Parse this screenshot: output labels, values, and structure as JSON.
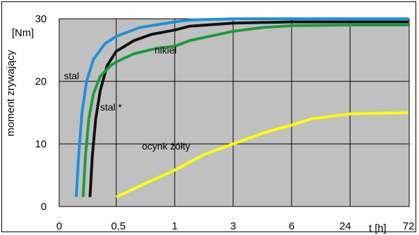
{
  "chart_data": {
    "type": "line",
    "title": "",
    "ylabel": "moment zrywający",
    "yunit": "[Nm]",
    "xlabel": "t [h]",
    "ylim": [
      0,
      30
    ],
    "yticks": [
      "0",
      "10",
      "20",
      "30"
    ],
    "xticks": [
      "0",
      "0,5",
      "1",
      "3",
      "6",
      "24",
      "72"
    ],
    "grid": true,
    "colors": {
      "plot_background": "#c0c0c0",
      "stal": "#1e90dc",
      "stal_star": "#111111",
      "nikiel": "#1f9a3c",
      "ocynk_zolty": "#ffff00"
    },
    "series": [
      {
        "name": "stal",
        "points": [
          [
            0.15,
            1.5
          ],
          [
            0.17,
            8
          ],
          [
            0.2,
            15
          ],
          [
            0.24,
            20
          ],
          [
            0.3,
            23.5
          ],
          [
            0.4,
            26
          ],
          [
            0.5,
            27.2
          ],
          [
            0.7,
            28.6
          ],
          [
            1,
            29.5
          ],
          [
            1.5,
            29.8
          ],
          [
            3,
            30
          ],
          [
            6,
            30
          ],
          [
            24,
            30
          ],
          [
            72,
            30
          ]
        ]
      },
      {
        "name": "stal *",
        "points": [
          [
            0.27,
            1.5
          ],
          [
            0.29,
            8
          ],
          [
            0.32,
            14
          ],
          [
            0.36,
            18.5
          ],
          [
            0.42,
            22.5
          ],
          [
            0.5,
            24.8
          ],
          [
            0.65,
            26.5
          ],
          [
            0.8,
            27.5
          ],
          [
            1,
            28.2
          ],
          [
            1.5,
            28.8
          ],
          [
            3,
            29.3
          ],
          [
            6,
            29.5
          ],
          [
            24,
            29.5
          ],
          [
            72,
            29.5
          ]
        ]
      },
      {
        "name": "nikiel",
        "points": [
          [
            0.21,
            1.5
          ],
          [
            0.23,
            8
          ],
          [
            0.26,
            14
          ],
          [
            0.3,
            18
          ],
          [
            0.36,
            20.8
          ],
          [
            0.45,
            22.5
          ],
          [
            0.5,
            23.1
          ],
          [
            0.65,
            24.4
          ],
          [
            0.85,
            25.3
          ],
          [
            1,
            25.6
          ],
          [
            1.5,
            26.5
          ],
          [
            3,
            28
          ],
          [
            4.5,
            28.6
          ],
          [
            6,
            28.9
          ],
          [
            24,
            29
          ],
          [
            72,
            29
          ]
        ]
      },
      {
        "name": "ocynk żółty",
        "points": [
          [
            0.5,
            1.5
          ],
          [
            0.75,
            3.7
          ],
          [
            1,
            5.8
          ],
          [
            2,
            8.3
          ],
          [
            3,
            10
          ],
          [
            4.5,
            11.7
          ],
          [
            6,
            13
          ],
          [
            12,
            14
          ],
          [
            24,
            14.8
          ],
          [
            48,
            14.9
          ],
          [
            72,
            15
          ]
        ]
      }
    ],
    "annotations": [
      {
        "text": "stal",
        "series": "stal"
      },
      {
        "text": "stal *",
        "series": "stal *"
      },
      {
        "text": "nikiel",
        "series": "nikiel"
      },
      {
        "text": "ocynk żółty",
        "series": "ocynk żółty"
      }
    ]
  }
}
